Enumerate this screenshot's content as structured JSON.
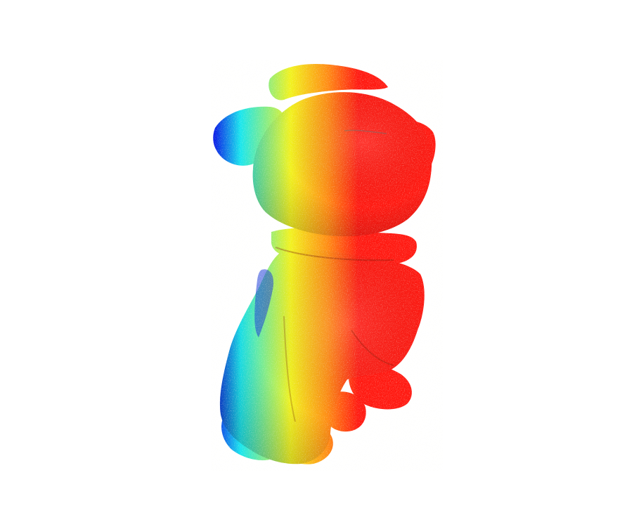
{
  "scene": {
    "background": "#ffffff",
    "subject": "point-cloud-dog-figurine",
    "colormap": "jet",
    "colormap_stops": [
      "#0a1ee6",
      "#18e6ee",
      "#f2f21e",
      "#ff8c14",
      "#ff1a12"
    ],
    "colormap_direction": "left-to-right"
  }
}
